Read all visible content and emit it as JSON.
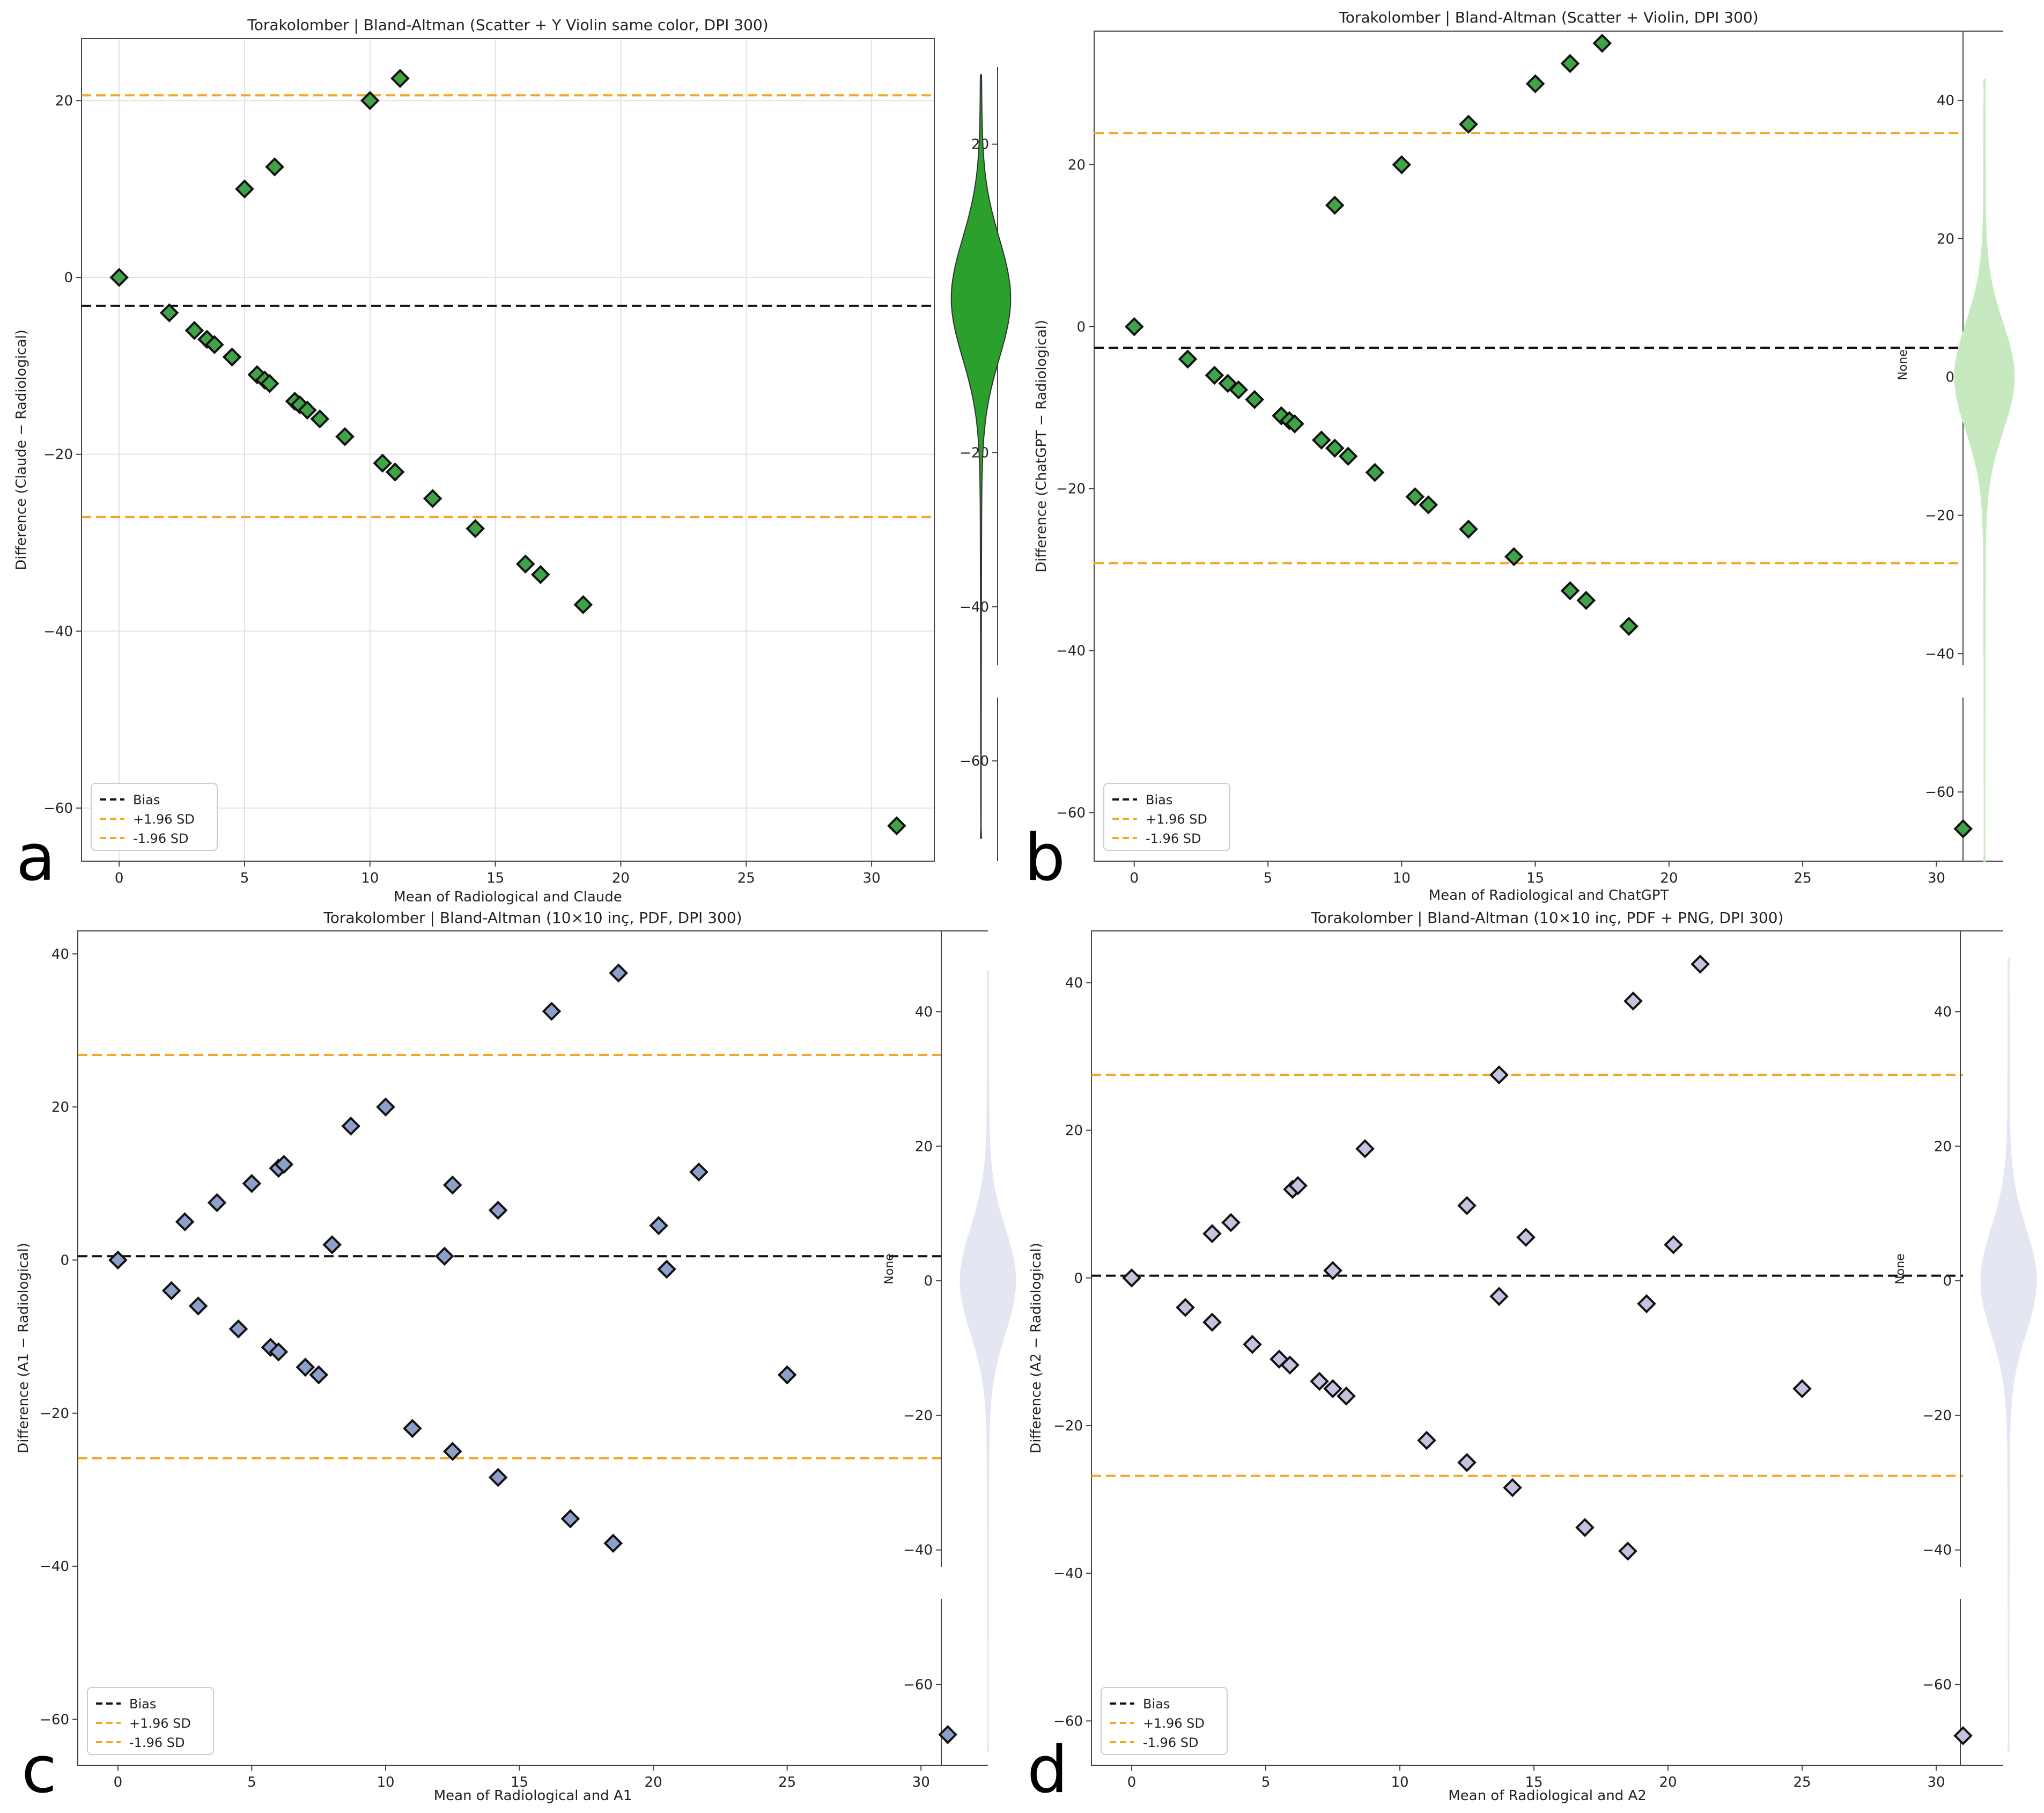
{
  "figure": {
    "panels": [
      "a",
      "b",
      "c",
      "d"
    ]
  },
  "chart_data": [
    {
      "panel": "a",
      "type": "scatter",
      "title": "Torakolomber | Bland-Altman (Scatter + Y Violin same color, DPI 300)",
      "xlabel": "Mean of Radiological and Claude",
      "ylabel": "Difference (Claude − Radiological)",
      "xlim": [
        -1.5,
        32.5
      ],
      "ylim": [
        -66,
        27
      ],
      "xticks": [
        0,
        5,
        10,
        15,
        20,
        25,
        30
      ],
      "yticks": [
        -60,
        -40,
        -20,
        0,
        20
      ],
      "grid": true,
      "marker_color": "#3fa447",
      "bias": -3.2,
      "upper": 20.6,
      "lower": -27.1,
      "points": [
        [
          0,
          0
        ],
        [
          5,
          10
        ],
        [
          6.2,
          12.5
        ],
        [
          10,
          20
        ],
        [
          11.2,
          22.5
        ],
        [
          2,
          -4
        ],
        [
          3,
          -6
        ],
        [
          3.5,
          -7
        ],
        [
          3.8,
          -7.6
        ],
        [
          4.5,
          -9
        ],
        [
          5.5,
          -11
        ],
        [
          5.8,
          -11.6
        ],
        [
          6,
          -12
        ],
        [
          7,
          -14
        ],
        [
          7.2,
          -14.4
        ],
        [
          7.5,
          -15
        ],
        [
          8,
          -16
        ],
        [
          9,
          -18
        ],
        [
          10.5,
          -21
        ],
        [
          11,
          -22
        ],
        [
          12.5,
          -25
        ],
        [
          14.2,
          -28.4
        ],
        [
          16.2,
          -32.4
        ],
        [
          16.8,
          -33.6
        ],
        [
          18.5,
          -37
        ],
        [
          31,
          -62
        ]
      ],
      "violin_color": "#2ca02c",
      "violin_yticks": [
        -60,
        -40,
        -20,
        0,
        20
      ],
      "violin_ylabel": "",
      "legend": [
        "Bias",
        "+1.96 SD",
        "-1.96 SD"
      ]
    },
    {
      "panel": "b",
      "type": "scatter",
      "title": "Torakolomber | Bland-Altman (Scatter + Violin, DPI 300)",
      "xlabel": "Mean of Radiological and ChatGPT",
      "ylabel": "Difference (ChatGPT − Radiological)",
      "xlim": [
        -1.5,
        32.5
      ],
      "ylim": [
        -66,
        36.5
      ],
      "xticks": [
        0,
        5,
        10,
        15,
        20,
        25,
        30
      ],
      "yticks": [
        -60,
        -40,
        -20,
        0,
        20
      ],
      "grid": false,
      "marker_color": "#3fa447",
      "bias": -2.6,
      "upper": 23.9,
      "lower": -29.2,
      "points": [
        [
          0,
          0
        ],
        [
          2,
          -4
        ],
        [
          3,
          -6
        ],
        [
          3.5,
          -7
        ],
        [
          3.9,
          -7.8
        ],
        [
          4.5,
          -9
        ],
        [
          5.5,
          -11
        ],
        [
          5.8,
          -11.6
        ],
        [
          6,
          -12
        ],
        [
          7,
          -14
        ],
        [
          7.5,
          -15
        ],
        [
          8,
          -16
        ],
        [
          9,
          -18
        ],
        [
          10.5,
          -21
        ],
        [
          11,
          -22
        ],
        [
          12.5,
          -25
        ],
        [
          14.2,
          -28.4
        ],
        [
          16.3,
          -32.6
        ],
        [
          16.9,
          -33.8
        ],
        [
          18.5,
          -37
        ],
        [
          7.5,
          15
        ],
        [
          10,
          20
        ],
        [
          12.5,
          25
        ],
        [
          15,
          30
        ],
        [
          16.3,
          32.5
        ],
        [
          17.5,
          35
        ],
        [
          31,
          -62
        ]
      ],
      "violin_color": "#c7e9c0",
      "violin_yticks": [
        -60,
        -40,
        -20,
        0,
        20,
        40
      ],
      "violin_ylabel": "None",
      "legend": [
        "Bias",
        "+1.96 SD",
        "-1.96 SD"
      ]
    },
    {
      "panel": "c",
      "type": "scatter",
      "title": "Torakolomber | Bland-Altman (10×10 inç, PDF, DPI 300)",
      "xlabel": "Mean of Radiological and A1",
      "ylabel": "Difference (A1 − Radiological)",
      "xlim": [
        -1.5,
        32.5
      ],
      "ylim": [
        -66,
        43
      ],
      "xticks": [
        0,
        5,
        10,
        15,
        20,
        25,
        30
      ],
      "yticks": [
        -60,
        -40,
        -20,
        0,
        20,
        40
      ],
      "grid": false,
      "marker_color": "#8da0cb",
      "bias": 0.5,
      "upper": 26.8,
      "lower": -25.9,
      "points": [
        [
          0,
          0
        ],
        [
          2.5,
          5
        ],
        [
          3.7,
          7.5
        ],
        [
          5,
          10
        ],
        [
          6,
          12
        ],
        [
          6.2,
          12.5
        ],
        [
          8.7,
          17.5
        ],
        [
          10,
          20
        ],
        [
          16.2,
          32.5
        ],
        [
          18.7,
          37.5
        ],
        [
          8,
          2
        ],
        [
          12.2,
          0.5
        ],
        [
          12.5,
          9.8
        ],
        [
          14.2,
          6.5
        ],
        [
          20.2,
          4.5
        ],
        [
          20.5,
          -1.2
        ],
        [
          21.7,
          11.5
        ],
        [
          2,
          -4
        ],
        [
          3,
          -6
        ],
        [
          4.5,
          -9
        ],
        [
          5.7,
          -11.4
        ],
        [
          6,
          -12
        ],
        [
          7,
          -14
        ],
        [
          7.5,
          -15
        ],
        [
          11,
          -22
        ],
        [
          12.5,
          -25
        ],
        [
          14.2,
          -28.4
        ],
        [
          16.9,
          -33.8
        ],
        [
          18.5,
          -37
        ],
        [
          25,
          -15
        ],
        [
          31,
          -62
        ]
      ],
      "violin_color": "#e4e7f1",
      "violin_yticks": [
        -60,
        -40,
        -20,
        0,
        20,
        40
      ],
      "violin_ylabel": "None",
      "legend": [
        "Bias",
        "+1.96 SD",
        "-1.96 SD"
      ]
    },
    {
      "panel": "d",
      "type": "scatter",
      "title": "Torakolomber | Bland-Altman (10×10 inç, PDF + PNG, DPI 300)",
      "xlabel": "Mean of Radiological and A2",
      "ylabel": "Difference (A2 − Radiological)",
      "xlim": [
        -1.5,
        32.5
      ],
      "ylim": [
        -66,
        47
      ],
      "xticks": [
        0,
        5,
        10,
        15,
        20,
        25,
        30
      ],
      "yticks": [
        -60,
        -40,
        -20,
        0,
        20,
        40
      ],
      "grid": false,
      "marker_color": "#c5c4e0",
      "bias": 0.3,
      "upper": 27.5,
      "lower": -26.8,
      "points": [
        [
          0,
          0
        ],
        [
          3,
          6
        ],
        [
          3.7,
          7.5
        ],
        [
          6,
          12
        ],
        [
          6.2,
          12.5
        ],
        [
          8.7,
          17.5
        ],
        [
          13.7,
          27.5
        ],
        [
          18.7,
          37.5
        ],
        [
          21.2,
          42.5
        ],
        [
          7.5,
          1
        ],
        [
          12.5,
          9.8
        ],
        [
          14.7,
          5.5
        ],
        [
          13.7,
          -2.5
        ],
        [
          20.2,
          4.5
        ],
        [
          19.2,
          -3.5
        ],
        [
          2,
          -4
        ],
        [
          3,
          -6
        ],
        [
          4.5,
          -9
        ],
        [
          5.5,
          -11
        ],
        [
          5.9,
          -11.8
        ],
        [
          7,
          -14
        ],
        [
          7.5,
          -15
        ],
        [
          8,
          -16
        ],
        [
          11,
          -22
        ],
        [
          12.5,
          -25
        ],
        [
          14.2,
          -28.4
        ],
        [
          16.9,
          -33.8
        ],
        [
          18.5,
          -37
        ],
        [
          25,
          -15
        ],
        [
          31,
          -62
        ]
      ],
      "violin_color": "#e4e7f1",
      "violin_yticks": [
        -60,
        -40,
        -20,
        0,
        20,
        40
      ],
      "violin_ylabel": "None",
      "legend": [
        "Bias",
        "+1.96 SD",
        "-1.96 SD"
      ]
    }
  ]
}
